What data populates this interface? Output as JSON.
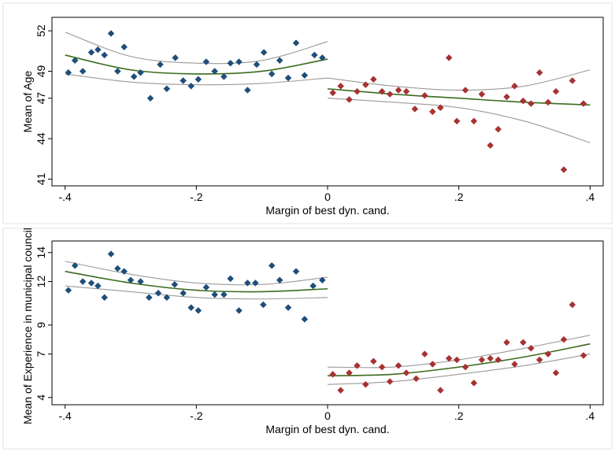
{
  "chart_data": [
    {
      "type": "scatter",
      "title": "",
      "xlabel": "Margin of best dyn. cand.",
      "ylabel": "Mean of Age",
      "xlim": [
        -0.42,
        0.42
      ],
      "ylim": [
        40.5,
        53
      ],
      "xticks": [
        {
          "v": -0.4,
          "label": "-.4"
        },
        {
          "v": -0.2,
          "label": "-.2"
        },
        {
          "v": 0,
          "label": "0"
        },
        {
          "v": 0.2,
          "label": ".2"
        },
        {
          "v": 0.4,
          "label": ".4"
        }
      ],
      "yticks": [
        {
          "v": 41,
          "label": "41"
        },
        {
          "v": 44,
          "label": "44"
        },
        {
          "v": 47,
          "label": "47"
        },
        {
          "v": 49,
          "label": "49"
        },
        {
          "v": 52,
          "label": "52"
        }
      ],
      "grid": false,
      "colors": {
        "left": "#1f4e79",
        "right": "#a83232",
        "fit": "#3b6b1f",
        "ci": "#9a9a9a"
      },
      "series": [
        {
          "side": "left",
          "x": [
            -0.395,
            -0.385,
            -0.373,
            -0.36,
            -0.35,
            -0.34,
            -0.33,
            -0.32,
            -0.31,
            -0.295,
            -0.285,
            -0.27,
            -0.255,
            -0.245,
            -0.232,
            -0.22,
            -0.208,
            -0.197,
            -0.185,
            -0.172,
            -0.158,
            -0.148,
            -0.135,
            -0.122,
            -0.108,
            -0.097,
            -0.085,
            -0.073,
            -0.06,
            -0.048,
            -0.035,
            -0.02,
            -0.008
          ],
          "y": [
            48.9,
            49.8,
            49.0,
            50.4,
            50.6,
            50.2,
            51.8,
            49.0,
            50.8,
            48.6,
            48.9,
            47.0,
            49.5,
            47.7,
            50.0,
            48.3,
            47.9,
            48.4,
            49.7,
            49.0,
            48.6,
            49.6,
            49.7,
            47.6,
            49.5,
            50.4,
            48.8,
            49.8,
            48.5,
            51.1,
            48.7,
            50.2,
            50.0
          ]
        },
        {
          "side": "right",
          "x": [
            0.008,
            0.02,
            0.033,
            0.045,
            0.058,
            0.07,
            0.083,
            0.095,
            0.108,
            0.12,
            0.133,
            0.148,
            0.16,
            0.172,
            0.185,
            0.197,
            0.21,
            0.223,
            0.235,
            0.248,
            0.26,
            0.273,
            0.285,
            0.298,
            0.31,
            0.323,
            0.336,
            0.348,
            0.36,
            0.373,
            0.39
          ],
          "y": [
            47.4,
            47.9,
            46.9,
            47.5,
            48.0,
            48.4,
            47.5,
            47.3,
            47.6,
            47.5,
            46.2,
            47.2,
            46.0,
            46.3,
            50.0,
            45.3,
            47.6,
            45.3,
            47.3,
            43.5,
            44.7,
            47.1,
            47.9,
            46.8,
            46.6,
            48.9,
            46.7,
            47.5,
            41.7,
            48.3,
            46.6
          ]
        }
      ],
      "fits": [
        {
          "side": "left",
          "x": [
            -0.4,
            -0.3,
            -0.2,
            -0.1,
            0
          ],
          "y": [
            50.2,
            49.1,
            48.8,
            49.0,
            49.9
          ],
          "lower": [
            48.8,
            48.2,
            48.0,
            48.1,
            48.5
          ],
          "upper": [
            51.9,
            50.1,
            49.6,
            49.8,
            51.2
          ]
        },
        {
          "side": "right",
          "x": [
            0,
            0.1,
            0.2,
            0.3,
            0.4
          ],
          "y": [
            47.7,
            47.3,
            47.0,
            46.7,
            46.5
          ],
          "lower": [
            47.0,
            46.7,
            46.3,
            45.3,
            43.7
          ],
          "upper": [
            48.5,
            47.9,
            47.6,
            47.9,
            49.1
          ]
        }
      ]
    },
    {
      "type": "scatter",
      "title": "",
      "xlabel": "Margin of best dyn. cand.",
      "ylabel": "Mean of Experience in municipal council",
      "xlim": [
        -0.42,
        0.42
      ],
      "ylim": [
        3.5,
        14.8
      ],
      "xticks": [
        {
          "v": -0.4,
          "label": "-.4"
        },
        {
          "v": -0.2,
          "label": "-.2"
        },
        {
          "v": 0,
          "label": "0"
        },
        {
          "v": 0.2,
          "label": ".2"
        },
        {
          "v": 0.4,
          "label": ".4"
        }
      ],
      "yticks": [
        {
          "v": 4,
          "label": "4"
        },
        {
          "v": 7,
          "label": "7"
        },
        {
          "v": 9,
          "label": "9"
        },
        {
          "v": 12,
          "label": "12"
        },
        {
          "v": 14,
          "label": "14"
        }
      ],
      "grid": false,
      "colors": {
        "left": "#1f4e79",
        "right": "#a83232",
        "fit": "#3b6b1f",
        "ci": "#9a9a9a"
      },
      "series": [
        {
          "side": "left",
          "x": [
            -0.395,
            -0.385,
            -0.373,
            -0.36,
            -0.35,
            -0.34,
            -0.33,
            -0.32,
            -0.31,
            -0.3,
            -0.285,
            -0.272,
            -0.258,
            -0.245,
            -0.233,
            -0.22,
            -0.208,
            -0.197,
            -0.185,
            -0.172,
            -0.158,
            -0.148,
            -0.135,
            -0.122,
            -0.11,
            -0.098,
            -0.085,
            -0.073,
            -0.06,
            -0.048,
            -0.035,
            -0.022,
            -0.008
          ],
          "y": [
            11.4,
            13.1,
            12.0,
            11.9,
            11.7,
            10.9,
            13.9,
            12.9,
            12.7,
            12.1,
            12.0,
            10.9,
            11.2,
            10.9,
            11.8,
            11.2,
            10.2,
            10.0,
            11.6,
            11.1,
            11.1,
            12.2,
            10.0,
            11.9,
            11.9,
            10.4,
            13.1,
            12.1,
            10.2,
            12.7,
            9.4,
            11.7,
            12.1
          ]
        },
        {
          "side": "right",
          "x": [
            0.008,
            0.02,
            0.033,
            0.045,
            0.058,
            0.07,
            0.083,
            0.095,
            0.108,
            0.12,
            0.135,
            0.148,
            0.16,
            0.172,
            0.185,
            0.197,
            0.21,
            0.223,
            0.235,
            0.248,
            0.26,
            0.273,
            0.285,
            0.298,
            0.31,
            0.323,
            0.336,
            0.348,
            0.36,
            0.373,
            0.39
          ],
          "y": [
            5.6,
            4.5,
            5.7,
            6.2,
            4.9,
            6.5,
            6.1,
            5.1,
            6.2,
            5.7,
            5.3,
            7.0,
            6.3,
            4.5,
            6.7,
            6.6,
            6.1,
            5.0,
            6.6,
            6.7,
            6.6,
            7.8,
            6.3,
            7.8,
            7.4,
            6.6,
            7.0,
            5.7,
            8.0,
            10.4,
            6.9
          ]
        }
      ],
      "fits": [
        {
          "side": "left",
          "x": [
            -0.4,
            -0.3,
            -0.2,
            -0.1,
            0
          ],
          "y": [
            12.7,
            11.9,
            11.4,
            11.3,
            11.5
          ],
          "lower": [
            11.7,
            11.3,
            10.9,
            10.8,
            10.9
          ],
          "upper": [
            13.4,
            12.5,
            11.9,
            11.8,
            12.3
          ]
        },
        {
          "side": "right",
          "x": [
            0,
            0.1,
            0.2,
            0.3,
            0.4
          ],
          "y": [
            5.5,
            5.6,
            6.1,
            6.8,
            7.7
          ],
          "lower": [
            4.9,
            5.1,
            5.6,
            6.2,
            7.0
          ],
          "upper": [
            6.1,
            6.1,
            6.6,
            7.4,
            8.3
          ]
        }
      ]
    }
  ]
}
